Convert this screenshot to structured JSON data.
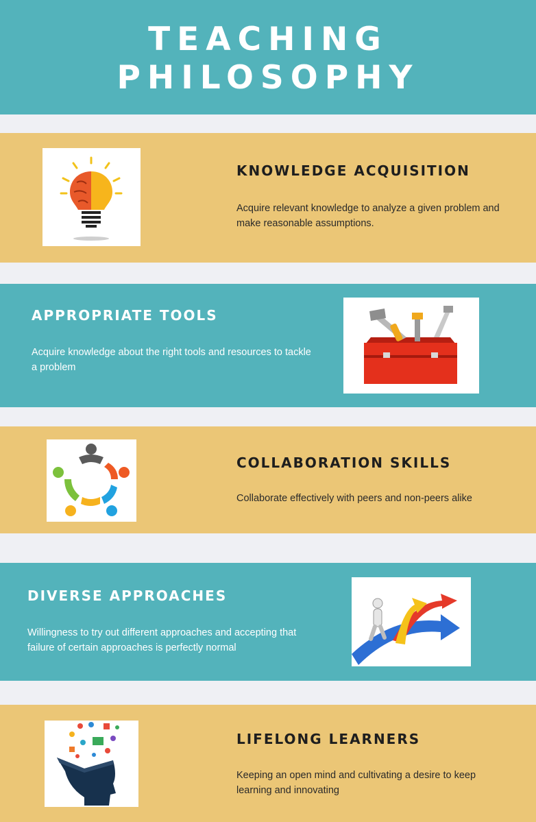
{
  "page": {
    "title_line1": "TEACHING",
    "title_line2": "PHILOSOPHY"
  },
  "sections": [
    {
      "heading": "KNOWLEDGE ACQUISITION",
      "text": "Acquire relevant knowledge to analyze a given problem and make reasonable assumptions.",
      "icon": "brain-lightbulb-icon"
    },
    {
      "heading": "APPROPRIATE TOOLS",
      "text": "Acquire knowledge about the right tools and resources to tackle a problem",
      "icon": "toolbox-icon"
    },
    {
      "heading": "COLLABORATION SKILLS",
      "text": "Collaborate effectively with peers and non-peers alike",
      "icon": "team-circle-icon"
    },
    {
      "heading": "DIVERSE APPROACHES",
      "text": "Willingness to try out different approaches and accepting that failure of certain approaches is perfectly normal",
      "icon": "diverging-arrows-icon"
    },
    {
      "heading": "LIFELONG LEARNERS",
      "text": "Keeping an open mind and cultivating a desire to keep learning and innovating",
      "icon": "open-mind-head-icon"
    }
  ],
  "colors": {
    "teal": "#53b3bb",
    "gold": "#ebc676",
    "gap": "#eff0f4"
  }
}
